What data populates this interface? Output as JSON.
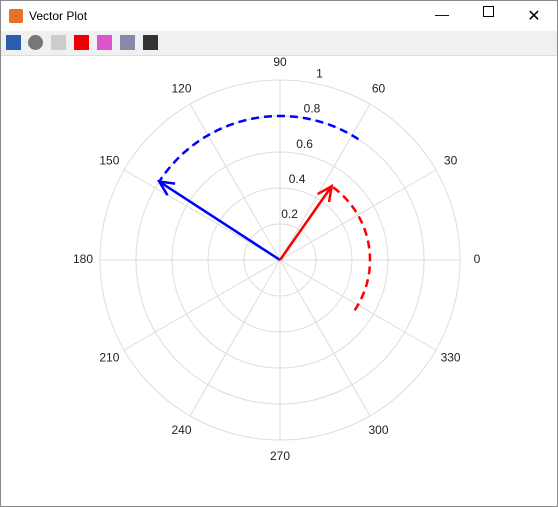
{
  "window": {
    "title": "Vector Plot"
  },
  "chart_data": {
    "type": "polar",
    "rlim": [
      0,
      1
    ],
    "rticks": [
      0.2,
      0.4,
      0.6,
      0.8,
      1
    ],
    "thetaticks": [
      0,
      30,
      60,
      90,
      120,
      150,
      180,
      210,
      240,
      270,
      300,
      330
    ],
    "grid": true,
    "vectors": [
      {
        "color": "#0000ff",
        "magnitude": 0.8,
        "angle": 147
      },
      {
        "color": "#ff0000",
        "magnitude": 0.5,
        "angle": 55
      }
    ],
    "arcs": [
      {
        "color": "#0000ff",
        "radius": 0.8,
        "start": 57,
        "end": 147
      },
      {
        "color": "#ff0000",
        "radius": 0.5,
        "start": -34,
        "end": 55
      }
    ]
  }
}
